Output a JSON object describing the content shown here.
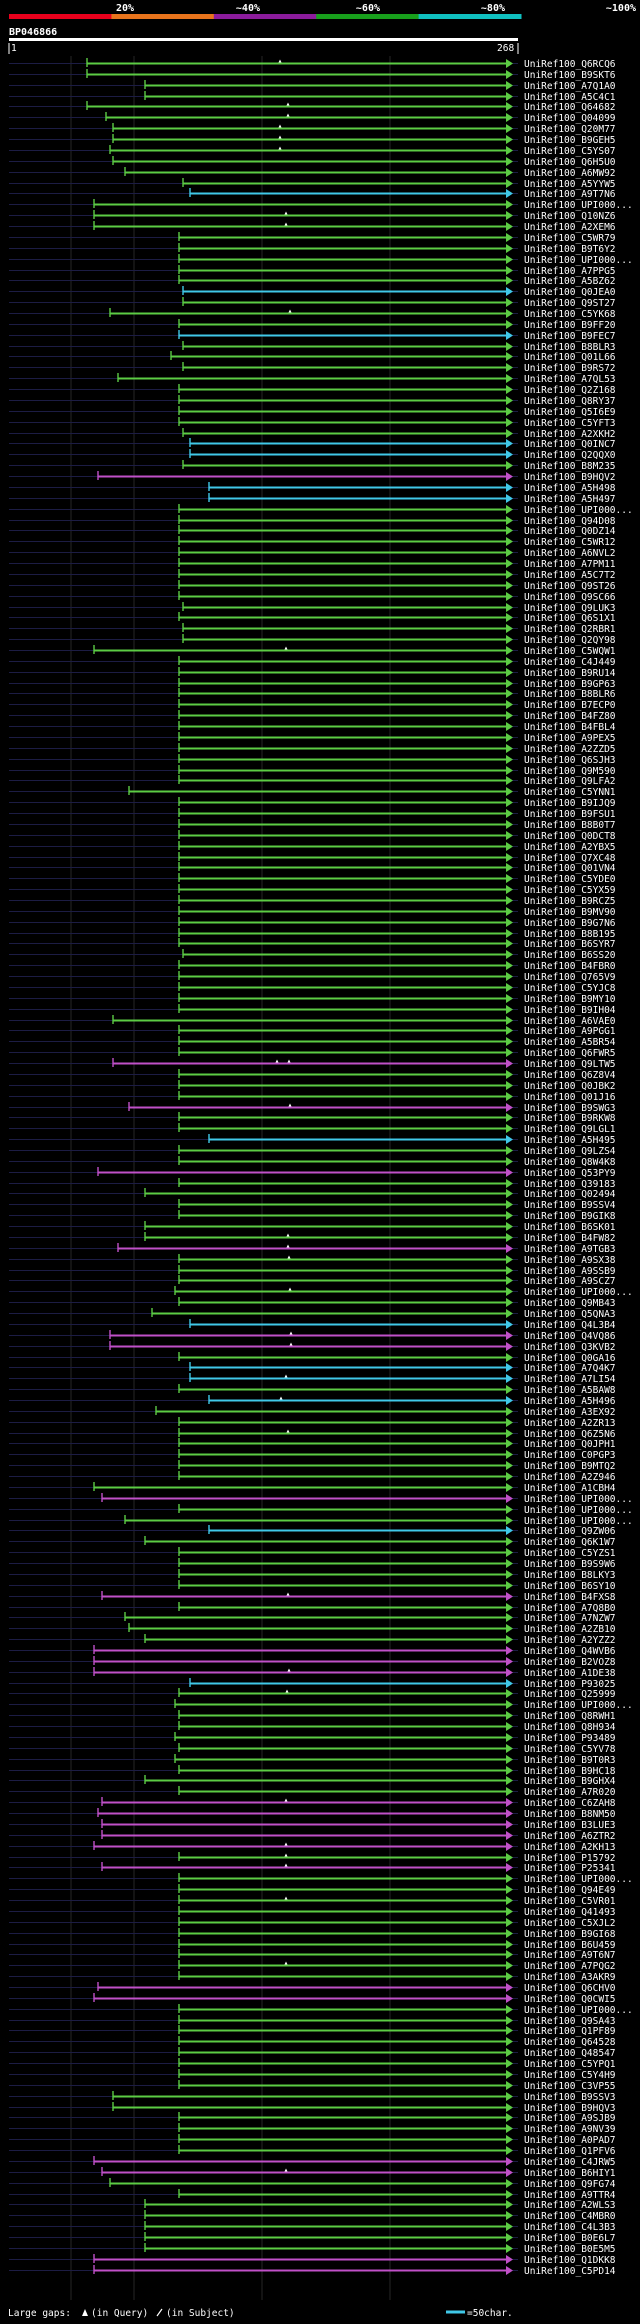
{
  "chart_data": {
    "type": "alignment_overview",
    "title": "BP046866",
    "query_length": 268,
    "axis_start_label": "1",
    "axis_end_label": "268",
    "identity_scale": {
      "labels": [
        "20%",
        "~40%",
        "~60%",
        "~80%",
        "~100%"
      ],
      "colors": [
        "#e8001c",
        "#e8741c",
        "#8c1c9c",
        "#18a01c",
        "#10c0c0"
      ]
    },
    "palette": {
      "green": "#5ccc44",
      "cyan": "#40c8e8",
      "magenta": "#c050c8",
      "background": "#000000",
      "row_line": "#1c1c44"
    },
    "hits": [
      [
        "UniRef100_Q6RCQ6",
        87,
        "g"
      ],
      [
        "UniRef100_B9SKT6",
        87,
        "g"
      ],
      [
        "UniRef100_A7Q1A0",
        145,
        "g"
      ],
      [
        "UniRef100_A5C4C1",
        145,
        "g"
      ],
      [
        "UniRef100_Q64682",
        87,
        "g"
      ],
      [
        "UniRef100_Q04099",
        106,
        "g"
      ],
      [
        "UniRef100_Q20M77",
        113,
        "g"
      ],
      [
        "UniRef100_B9GEH5",
        113,
        "g"
      ],
      [
        "UniRef100_C5YS07",
        110,
        "g"
      ],
      [
        "UniRef100_Q6H5U0",
        113,
        "g"
      ],
      [
        "UniRef100_A6MW92",
        125,
        "g"
      ],
      [
        "UniRef100_A5YYW5",
        183,
        "g"
      ],
      [
        "UniRef100_A9T7N6",
        190,
        "c"
      ],
      [
        "UniRef100_UPI000...",
        94,
        "g"
      ],
      [
        "UniRef100_Q10NZ6",
        94,
        "g"
      ],
      [
        "UniRef100_A2XEM6",
        94,
        "g"
      ],
      [
        "UniRef100_C5WR79",
        179,
        "g"
      ],
      [
        "UniRef100_B9T6Y2",
        179,
        "g"
      ],
      [
        "UniRef100_UPI000...",
        179,
        "g"
      ],
      [
        "UniRef100_A7PPG5",
        179,
        "g"
      ],
      [
        "UniRef100_A5BZ62",
        179,
        "g"
      ],
      [
        "UniRef100_Q0JEA0",
        183,
        "c"
      ],
      [
        "UniRef100_Q9ST27",
        183,
        "g"
      ],
      [
        "UniRef100_C5YK68",
        110,
        "g"
      ],
      [
        "UniRef100_B9FF20",
        179,
        "g"
      ],
      [
        "UniRef100_B9FEC7",
        179,
        "c"
      ],
      [
        "UniRef100_B8BLR3",
        183,
        "g"
      ],
      [
        "UniRef100_Q01L66",
        171,
        "g"
      ],
      [
        "UniRef100_B9RS72",
        183,
        "g"
      ],
      [
        "UniRef100_A7QL53",
        118,
        "g"
      ],
      [
        "UniRef100_Q2Z168",
        179,
        "g"
      ],
      [
        "UniRef100_Q8RY37",
        179,
        "g"
      ],
      [
        "UniRef100_Q5I6E9",
        179,
        "g"
      ],
      [
        "UniRef100_C5YFT3",
        179,
        "g"
      ],
      [
        "UniRef100_A2XKH2",
        183,
        "g"
      ],
      [
        "UniRef100_Q0INC7",
        190,
        "c"
      ],
      [
        "UniRef100_Q2QQX0",
        190,
        "c"
      ],
      [
        "UniRef100_B8M235",
        183,
        "g"
      ],
      [
        "UniRef100_B9HQV2",
        98,
        "m"
      ],
      [
        "UniRef100_A5H498",
        209,
        "c"
      ],
      [
        "UniRef100_A5H497",
        209,
        "c"
      ],
      [
        "UniRef100_UPI000...",
        179,
        "g"
      ],
      [
        "UniRef100_Q94D08",
        179,
        "g"
      ],
      [
        "UniRef100_Q0DZ14",
        179,
        "g"
      ],
      [
        "UniRef100_C5WR12",
        179,
        "g"
      ],
      [
        "UniRef100_A6NVL2",
        179,
        "g"
      ],
      [
        "UniRef100_A7PM11",
        179,
        "g"
      ],
      [
        "UniRef100_A5C7T2",
        179,
        "g"
      ],
      [
        "UniRef100_Q9ST26",
        179,
        "g"
      ],
      [
        "UniRef100_Q9SC66",
        179,
        "g"
      ],
      [
        "UniRef100_Q9LUK3",
        183,
        "g"
      ],
      [
        "UniRef100_Q6S1X1",
        179,
        "g"
      ],
      [
        "UniRef100_Q2RBR1",
        183,
        "g"
      ],
      [
        "UniRef100_Q2QY98",
        183,
        "g"
      ],
      [
        "UniRef100_C5WQW1",
        94,
        "g"
      ],
      [
        "UniRef100_C4J449",
        179,
        "g"
      ],
      [
        "UniRef100_B9RU14",
        179,
        "g"
      ],
      [
        "UniRef100_B9GP63",
        179,
        "g"
      ],
      [
        "UniRef100_B8BLR6",
        179,
        "g"
      ],
      [
        "UniRef100_B7ECP0",
        179,
        "g"
      ],
      [
        "UniRef100_B4FZ80",
        179,
        "g"
      ],
      [
        "UniRef100_B4FBL4",
        179,
        "g"
      ],
      [
        "UniRef100_A9PEX5",
        179,
        "g"
      ],
      [
        "UniRef100_A2ZZD5",
        179,
        "g"
      ],
      [
        "UniRef100_Q6SJH3",
        179,
        "g"
      ],
      [
        "UniRef100_Q9M590",
        179,
        "g"
      ],
      [
        "UniRef100_Q9LFA2",
        179,
        "g"
      ],
      [
        "UniRef100_C5YNN1",
        129,
        "g"
      ],
      [
        "UniRef100_B9IJQ9",
        179,
        "g"
      ],
      [
        "UniRef100_B9FSU1",
        179,
        "g"
      ],
      [
        "UniRef100_B8B0T7",
        179,
        "g"
      ],
      [
        "UniRef100_Q0DCT8",
        179,
        "g"
      ],
      [
        "UniRef100_A2YBX5",
        179,
        "g"
      ],
      [
        "UniRef100_Q7XC48",
        179,
        "g"
      ],
      [
        "UniRef100_Q01VN4",
        179,
        "g"
      ],
      [
        "UniRef100_C5YDE0",
        179,
        "g"
      ],
      [
        "UniRef100_C5YX59",
        179,
        "g"
      ],
      [
        "UniRef100_B9RCZ5",
        179,
        "g"
      ],
      [
        "UniRef100_B9MV90",
        179,
        "g"
      ],
      [
        "UniRef100_B9G7N6",
        179,
        "g"
      ],
      [
        "UniRef100_B8B195",
        179,
        "g"
      ],
      [
        "UniRef100_B6SYR7",
        179,
        "g"
      ],
      [
        "UniRef100_B6SS20",
        183,
        "g"
      ],
      [
        "UniRef100_B4FBR0",
        179,
        "g"
      ],
      [
        "UniRef100_Q765V9",
        179,
        "g"
      ],
      [
        "UniRef100_C5YJC8",
        179,
        "g"
      ],
      [
        "UniRef100_B9MY10",
        179,
        "g"
      ],
      [
        "UniRef100_B9IH04",
        179,
        "g"
      ],
      [
        "UniRef100_A6VAE0",
        113,
        "g"
      ],
      [
        "UniRef100_A9PGG1",
        179,
        "g"
      ],
      [
        "UniRef100_A5BR54",
        179,
        "g"
      ],
      [
        "UniRef100_Q6FWR5",
        179,
        "g"
      ],
      [
        "UniRef100_Q9LTW5",
        113,
        "m"
      ],
      [
        "UniRef100_Q6Z8V4",
        179,
        "g"
      ],
      [
        "UniRef100_Q0JBK2",
        179,
        "g"
      ],
      [
        "UniRef100_Q01J16",
        179,
        "g"
      ],
      [
        "UniRef100_B9SWG3",
        129,
        "m"
      ],
      [
        "UniRef100_B9RKW8",
        179,
        "g"
      ],
      [
        "UniRef100_Q9LGL1",
        179,
        "g"
      ],
      [
        "UniRef100_A5H495",
        209,
        "c"
      ],
      [
        "UniRef100_Q9LZS4",
        179,
        "g"
      ],
      [
        "UniRef100_Q8W4K8",
        179,
        "g"
      ],
      [
        "UniRef100_Q53PY9",
        98,
        "m"
      ],
      [
        "UniRef100_Q39183",
        179,
        "g"
      ],
      [
        "UniRef100_Q02494",
        145,
        "g"
      ],
      [
        "UniRef100_B9SSV4",
        179,
        "g"
      ],
      [
        "UniRef100_B9GIK8",
        179,
        "g"
      ],
      [
        "UniRef100_B6SK01",
        145,
        "g"
      ],
      [
        "UniRef100_B4FW82",
        145,
        "g"
      ],
      [
        "UniRef100_A9TGB3",
        118,
        "m"
      ],
      [
        "UniRef100_A9SX38",
        179,
        "g"
      ],
      [
        "UniRef100_A9SSB9",
        179,
        "g"
      ],
      [
        "UniRef100_A9SCZ7",
        179,
        "g"
      ],
      [
        "UniRef100_UPI000...",
        175,
        "g"
      ],
      [
        "UniRef100_Q9MB43",
        179,
        "g"
      ],
      [
        "UniRef100_Q5QNA3",
        152,
        "g"
      ],
      [
        "UniRef100_Q4L3B4",
        190,
        "c"
      ],
      [
        "UniRef100_Q4VQ86",
        110,
        "m"
      ],
      [
        "UniRef100_Q3KVB2",
        110,
        "m"
      ],
      [
        "UniRef100_Q0GA16",
        179,
        "g"
      ],
      [
        "UniRef100_A7Q4K7",
        190,
        "c"
      ],
      [
        "UniRef100_A7LI54",
        190,
        "c"
      ],
      [
        "UniRef100_A5BAW8",
        179,
        "g"
      ],
      [
        "UniRef100_A5H496",
        209,
        "c"
      ],
      [
        "UniRef100_A3EX92",
        156,
        "g"
      ],
      [
        "UniRef100_A2ZR13",
        179,
        "g"
      ],
      [
        "UniRef100_Q6Z5N6",
        179,
        "g"
      ],
      [
        "UniRef100_Q0JPH1",
        179,
        "g"
      ],
      [
        "UniRef100_C0PGP3",
        179,
        "g"
      ],
      [
        "UniRef100_B9MTQ2",
        179,
        "g"
      ],
      [
        "UniRef100_A2Z946",
        179,
        "g"
      ],
      [
        "UniRef100_A1CBH4",
        94,
        "g"
      ],
      [
        "UniRef100_UPI000...",
        102,
        "m"
      ],
      [
        "UniRef100_UPI000...",
        179,
        "g"
      ],
      [
        "UniRef100_UPI000...",
        125,
        "g"
      ],
      [
        "UniRef100_Q9ZW06",
        209,
        "c"
      ],
      [
        "UniRef100_Q6K1W7",
        145,
        "g"
      ],
      [
        "UniRef100_C5YZS1",
        179,
        "g"
      ],
      [
        "UniRef100_B9S9W6",
        179,
        "g"
      ],
      [
        "UniRef100_B8LKY3",
        179,
        "g"
      ],
      [
        "UniRef100_B6SY10",
        179,
        "g"
      ],
      [
        "UniRef100_B4FXS8",
        102,
        "m"
      ],
      [
        "UniRef100_A7Q8B0",
        179,
        "g"
      ],
      [
        "UniRef100_A7NZW7",
        125,
        "g"
      ],
      [
        "UniRef100_A2ZB10",
        129,
        "g"
      ],
      [
        "UniRef100_A2YZZ2",
        145,
        "g"
      ],
      [
        "UniRef100_Q4WVB6",
        94,
        "m"
      ],
      [
        "UniRef100_B2VOZ8",
        94,
        "m"
      ],
      [
        "UniRef100_A1DE38",
        94,
        "m"
      ],
      [
        "UniRef100_P93025",
        190,
        "c"
      ],
      [
        "UniRef100_Q25999",
        179,
        "g"
      ],
      [
        "UniRef100_UPI000...",
        175,
        "g"
      ],
      [
        "UniRef100_Q8RWH1",
        179,
        "g"
      ],
      [
        "UniRef100_Q8H934",
        179,
        "g"
      ],
      [
        "UniRef100_P93489",
        175,
        "g"
      ],
      [
        "UniRef100_C5YV78",
        179,
        "g"
      ],
      [
        "UniRef100_B9T0R3",
        175,
        "g"
      ],
      [
        "UniRef100_B9HC18",
        179,
        "g"
      ],
      [
        "UniRef100_B9GHX4",
        145,
        "g"
      ],
      [
        "UniRef100_A7R020",
        179,
        "g"
      ],
      [
        "UniRef100_C6ZAH8",
        102,
        "m"
      ],
      [
        "UniRef100_B8NM50",
        98,
        "m"
      ],
      [
        "UniRef100_B3LUE3",
        102,
        "m"
      ],
      [
        "UniRef100_A6ZTR2",
        102,
        "m"
      ],
      [
        "UniRef100_A2KH13",
        94,
        "m"
      ],
      [
        "UniRef100_P15792",
        179,
        "g"
      ],
      [
        "UniRef100_P25341",
        102,
        "m"
      ],
      [
        "UniRef100_UPI000...",
        179,
        "g"
      ],
      [
        "UniRef100_Q94E49",
        179,
        "g"
      ],
      [
        "UniRef100_C5VR01",
        179,
        "g"
      ],
      [
        "UniRef100_Q41493",
        179,
        "g"
      ],
      [
        "UniRef100_C5XJL2",
        179,
        "g"
      ],
      [
        "UniRef100_B9GI68",
        179,
        "g"
      ],
      [
        "UniRef100_B6U459",
        179,
        "g"
      ],
      [
        "UniRef100_A9T6N7",
        179,
        "g"
      ],
      [
        "UniRef100_A7PQG2",
        179,
        "g"
      ],
      [
        "UniRef100_A3AKR9",
        179,
        "g"
      ],
      [
        "UniRef100_Q6CHV0",
        98,
        "m"
      ],
      [
        "UniRef100_Q0CWI5",
        94,
        "m"
      ],
      [
        "UniRef100_UPI000...",
        179,
        "g"
      ],
      [
        "UniRef100_Q9SA43",
        179,
        "g"
      ],
      [
        "UniRef100_Q1PF89",
        179,
        "g"
      ],
      [
        "UniRef100_Q64528",
        179,
        "g"
      ],
      [
        "UniRef100_Q48547",
        179,
        "g"
      ],
      [
        "UniRef100_C5YPQ1",
        179,
        "g"
      ],
      [
        "UniRef100_C5Y4H9",
        179,
        "g"
      ],
      [
        "UniRef100_C3VP55",
        179,
        "g"
      ],
      [
        "UniRef100_B9SSV3",
        113,
        "g"
      ],
      [
        "UniRef100_B9HQV3",
        113,
        "g"
      ],
      [
        "UniRef100_A9SJB9",
        179,
        "g"
      ],
      [
        "UniRef100_A9NV39",
        179,
        "g"
      ],
      [
        "UniRef100_A0PAD7",
        179,
        "g"
      ],
      [
        "UniRef100_Q1PFV6",
        179,
        "g"
      ],
      [
        "UniRef100_C4JRW5",
        94,
        "m"
      ],
      [
        "UniRef100_B6HIY1",
        102,
        "m"
      ],
      [
        "UniRef100_Q9FG74",
        110,
        "g"
      ],
      [
        "UniRef100_A9TTR4",
        179,
        "g"
      ],
      [
        "UniRef100_A2WLS3",
        145,
        "g"
      ],
      [
        "UniRef100_C4MBR0",
        145,
        "g"
      ],
      [
        "UniRef100_C4L3B3",
        145,
        "g"
      ],
      [
        "UniRef100_B0E6L7",
        145,
        "g"
      ],
      [
        "UniRef100_B0E5M5",
        145,
        "g"
      ],
      [
        "UniRef100_Q1DKK8",
        94,
        "m"
      ],
      [
        "UniRef100_C5PD14",
        94,
        "m"
      ]
    ],
    "gap_marks": [
      [
        0,
        280
      ],
      [
        4,
        288
      ],
      [
        5,
        288
      ],
      [
        6,
        280
      ],
      [
        7,
        280
      ],
      [
        8,
        280
      ],
      [
        14,
        286
      ],
      [
        15,
        286
      ],
      [
        23,
        290
      ],
      [
        54,
        286
      ],
      [
        92,
        277
      ],
      [
        92,
        289
      ],
      [
        96,
        290
      ],
      [
        108,
        288
      ],
      [
        109,
        288
      ],
      [
        110,
        289
      ],
      [
        113,
        290
      ],
      [
        117,
        291
      ],
      [
        118,
        291
      ],
      [
        121,
        286
      ],
      [
        123,
        281
      ],
      [
        126,
        288
      ],
      [
        141,
        288
      ],
      [
        148,
        289
      ],
      [
        150,
        287
      ],
      [
        160,
        286
      ],
      [
        164,
        286
      ],
      [
        165,
        286
      ],
      [
        166,
        286
      ],
      [
        169,
        286
      ],
      [
        175,
        286
      ],
      [
        194,
        286
      ]
    ],
    "legend": {
      "large_gaps_label": "Large gaps:",
      "query_gap_label": "(in Query)",
      "subject_gap_label": "(in Subject)",
      "scale_label": "=50char."
    }
  }
}
